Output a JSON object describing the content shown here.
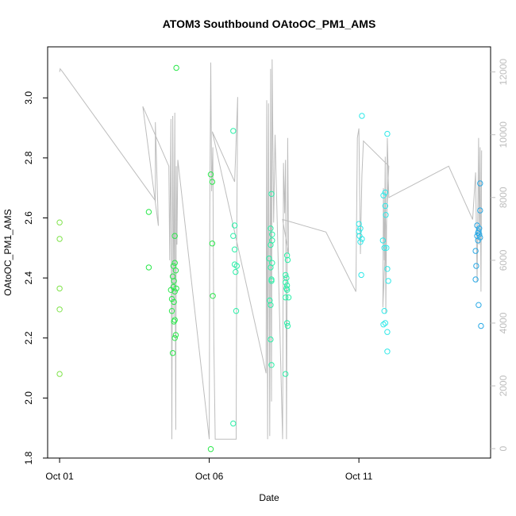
{
  "chart_data": {
    "type": "scatter",
    "title": "ATOM3 Southbound OAtoOC_PM1_AMS",
    "xlabel": "Date",
    "ylabel": "OAtoOC_PM1_AMS",
    "x_tick_labels": [
      "Oct 01",
      "Oct 06",
      "Oct 11"
    ],
    "x_tick_days": [
      1,
      6,
      11
    ],
    "xlim": [
      0.6,
      15.4
    ],
    "ylim": [
      1.8,
      3.17
    ],
    "y_ticks": [
      1.8,
      2.0,
      2.2,
      2.4,
      2.6,
      2.8,
      3.0
    ],
    "y2lim": [
      -300,
      12800
    ],
    "y2_ticks": [
      0,
      2000,
      4000,
      6000,
      8000,
      10000,
      12000
    ],
    "colors": {
      "line": "#bdbdbd",
      "axis": "#000000",
      "axis_right": "#bdbdbd"
    },
    "color_scale": [
      "#7fe34a",
      "#29e84a",
      "#2bf0a8",
      "#2ee8e8",
      "#29a9e6"
    ],
    "points": [
      {
        "x": 1.0,
        "y": 2.585
      },
      {
        "x": 1.0,
        "y": 2.53
      },
      {
        "x": 1.0,
        "y": 2.365
      },
      {
        "x": 1.0,
        "y": 2.295
      },
      {
        "x": 1.0,
        "y": 2.08
      },
      {
        "x": 3.98,
        "y": 2.62
      },
      {
        "x": 3.98,
        "y": 2.435
      },
      {
        "x": 4.9,
        "y": 3.1
      },
      {
        "x": 4.85,
        "y": 2.54
      },
      {
        "x": 4.85,
        "y": 2.45
      },
      {
        "x": 4.8,
        "y": 2.44
      },
      {
        "x": 4.88,
        "y": 2.425
      },
      {
        "x": 4.78,
        "y": 2.405
      },
      {
        "x": 4.82,
        "y": 2.39
      },
      {
        "x": 4.8,
        "y": 2.37
      },
      {
        "x": 4.9,
        "y": 2.365
      },
      {
        "x": 4.72,
        "y": 2.36
      },
      {
        "x": 4.85,
        "y": 2.355
      },
      {
        "x": 4.75,
        "y": 2.33
      },
      {
        "x": 4.82,
        "y": 2.32
      },
      {
        "x": 4.75,
        "y": 2.29
      },
      {
        "x": 4.85,
        "y": 2.26
      },
      {
        "x": 4.82,
        "y": 2.255
      },
      {
        "x": 4.88,
        "y": 2.21
      },
      {
        "x": 4.85,
        "y": 2.2
      },
      {
        "x": 4.78,
        "y": 2.15
      },
      {
        "x": 6.05,
        "y": 2.745
      },
      {
        "x": 6.1,
        "y": 2.72
      },
      {
        "x": 6.1,
        "y": 2.515
      },
      {
        "x": 6.12,
        "y": 2.34
      },
      {
        "x": 6.05,
        "y": 1.83
      },
      {
        "x": 6.8,
        "y": 2.89
      },
      {
        "x": 6.85,
        "y": 2.575
      },
      {
        "x": 6.8,
        "y": 2.54
      },
      {
        "x": 6.85,
        "y": 2.495
      },
      {
        "x": 6.85,
        "y": 2.445
      },
      {
        "x": 6.92,
        "y": 2.44
      },
      {
        "x": 6.88,
        "y": 2.42
      },
      {
        "x": 6.9,
        "y": 2.29
      },
      {
        "x": 6.8,
        "y": 1.915
      },
      {
        "x": 8.08,
        "y": 2.68
      },
      {
        "x": 8.05,
        "y": 2.565
      },
      {
        "x": 8.1,
        "y": 2.545
      },
      {
        "x": 8.1,
        "y": 2.525
      },
      {
        "x": 8.05,
        "y": 2.51
      },
      {
        "x": 8.0,
        "y": 2.465
      },
      {
        "x": 8.1,
        "y": 2.45
      },
      {
        "x": 8.05,
        "y": 2.435
      },
      {
        "x": 8.08,
        "y": 2.395
      },
      {
        "x": 8.08,
        "y": 2.39
      },
      {
        "x": 8.02,
        "y": 2.325
      },
      {
        "x": 8.05,
        "y": 2.31
      },
      {
        "x": 8.05,
        "y": 2.195
      },
      {
        "x": 8.08,
        "y": 2.11
      },
      {
        "x": 8.6,
        "y": 2.475
      },
      {
        "x": 8.62,
        "y": 2.46
      },
      {
        "x": 8.55,
        "y": 2.41
      },
      {
        "x": 8.58,
        "y": 2.4
      },
      {
        "x": 8.55,
        "y": 2.385
      },
      {
        "x": 8.6,
        "y": 2.375
      },
      {
        "x": 8.58,
        "y": 2.365
      },
      {
        "x": 8.6,
        "y": 2.36
      },
      {
        "x": 8.55,
        "y": 2.335
      },
      {
        "x": 8.65,
        "y": 2.335
      },
      {
        "x": 8.6,
        "y": 2.25
      },
      {
        "x": 8.62,
        "y": 2.24
      },
      {
        "x": 8.55,
        "y": 2.08
      },
      {
        "x": 11.1,
        "y": 2.94
      },
      {
        "x": 11.0,
        "y": 2.58
      },
      {
        "x": 11.05,
        "y": 2.565
      },
      {
        "x": 11.0,
        "y": 2.555
      },
      {
        "x": 11.02,
        "y": 2.54
      },
      {
        "x": 11.1,
        "y": 2.53
      },
      {
        "x": 11.05,
        "y": 2.52
      },
      {
        "x": 11.08,
        "y": 2.41
      },
      {
        "x": 11.88,
        "y": 2.685
      },
      {
        "x": 11.82,
        "y": 2.675
      },
      {
        "x": 11.88,
        "y": 2.64
      },
      {
        "x": 11.9,
        "y": 2.61
      },
      {
        "x": 11.8,
        "y": 2.525
      },
      {
        "x": 11.85,
        "y": 2.5
      },
      {
        "x": 11.92,
        "y": 2.5
      },
      {
        "x": 11.95,
        "y": 2.43
      },
      {
        "x": 11.98,
        "y": 2.39
      },
      {
        "x": 11.85,
        "y": 2.29
      },
      {
        "x": 11.88,
        "y": 2.25
      },
      {
        "x": 11.82,
        "y": 2.245
      },
      {
        "x": 11.95,
        "y": 2.22
      },
      {
        "x": 11.95,
        "y": 2.155
      },
      {
        "x": 11.95,
        "y": 2.88
      },
      {
        "x": 15.05,
        "y": 2.715
      },
      {
        "x": 15.05,
        "y": 2.625
      },
      {
        "x": 14.95,
        "y": 2.575
      },
      {
        "x": 15.02,
        "y": 2.565
      },
      {
        "x": 15.0,
        "y": 2.555
      },
      {
        "x": 14.98,
        "y": 2.55
      },
      {
        "x": 15.02,
        "y": 2.545
      },
      {
        "x": 14.95,
        "y": 2.54
      },
      {
        "x": 15.05,
        "y": 2.535
      },
      {
        "x": 14.98,
        "y": 2.525
      },
      {
        "x": 14.9,
        "y": 2.49
      },
      {
        "x": 14.92,
        "y": 2.44
      },
      {
        "x": 14.9,
        "y": 2.395
      },
      {
        "x": 15.0,
        "y": 2.31
      },
      {
        "x": 15.08,
        "y": 2.24
      }
    ],
    "line_series": [
      [
        1.0,
        12000
      ],
      [
        1.02,
        12100
      ],
      [
        1.1,
        12000
      ],
      [
        4.2,
        7900
      ],
      [
        4.2,
        10400
      ],
      [
        4.3,
        7100
      ],
      [
        3.78,
        10900
      ],
      [
        4.65,
        9000
      ],
      [
        4.68,
        6000
      ],
      [
        4.72,
        10500
      ],
      [
        4.75,
        300
      ],
      [
        4.78,
        10600
      ],
      [
        4.82,
        4200
      ],
      [
        4.85,
        10700
      ],
      [
        4.88,
        600
      ],
      [
        4.9,
        9000
      ],
      [
        4.92,
        6500
      ],
      [
        4.95,
        9200
      ],
      [
        6.0,
        300
      ],
      [
        6.02,
        7700
      ],
      [
        6.05,
        12300
      ],
      [
        6.08,
        8200
      ],
      [
        6.12,
        9600
      ],
      [
        6.15,
        3500
      ],
      [
        6.2,
        300
      ],
      [
        6.9,
        300
      ],
      [
        6.92,
        7000
      ],
      [
        6.95,
        11200
      ],
      [
        6.85,
        8500
      ],
      [
        6.1,
        10100
      ],
      [
        7.9,
        2400
      ],
      [
        7.92,
        11100
      ],
      [
        7.95,
        300
      ],
      [
        7.98,
        11000
      ],
      [
        8.02,
        400
      ],
      [
        8.05,
        12100
      ],
      [
        8.08,
        1500
      ],
      [
        8.1,
        12400
      ],
      [
        8.15,
        7200
      ],
      [
        8.2,
        10000
      ],
      [
        8.45,
        300
      ],
      [
        8.48,
        9100
      ],
      [
        8.52,
        7500
      ],
      [
        8.55,
        9200
      ],
      [
        8.58,
        300
      ],
      [
        8.62,
        9900
      ],
      [
        8.65,
        6200
      ],
      [
        8.45,
        7300
      ],
      [
        9.9,
        6900
      ],
      [
        10.9,
        5000
      ],
      [
        10.95,
        9900
      ],
      [
        11.0,
        10200
      ],
      [
        11.05,
        6200
      ],
      [
        11.1,
        8700
      ],
      [
        11.15,
        9800
      ],
      [
        12.0,
        9000
      ],
      [
        11.8,
        4500
      ],
      [
        11.82,
        8300
      ],
      [
        11.85,
        6000
      ],
      [
        11.88,
        9300
      ],
      [
        11.9,
        4300
      ],
      [
        11.95,
        9900
      ],
      [
        12.0,
        8000
      ],
      [
        14.0,
        9000
      ],
      [
        14.8,
        7300
      ],
      [
        14.9,
        8800
      ],
      [
        14.95,
        5300
      ],
      [
        15.0,
        9900
      ],
      [
        15.02,
        6500
      ],
      [
        15.05,
        9600
      ],
      [
        15.08,
        5000
      ],
      [
        15.1,
        9500
      ]
    ]
  }
}
